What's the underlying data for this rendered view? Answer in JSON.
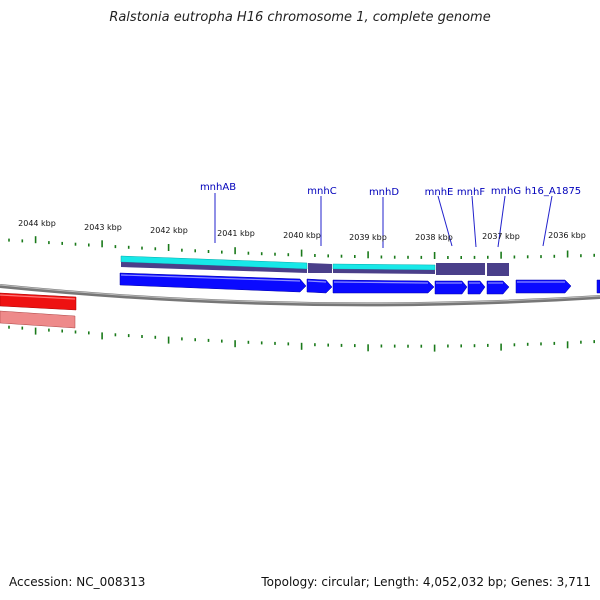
{
  "title": "Ralstonia eutropha H16 chromosome 1, complete genome",
  "footer": {
    "accession": "Accession: NC_008313",
    "summary": "Topology: circular; Length: 4,052,032 bp; Genes: 3,711"
  },
  "scale_labels": [
    "2044 kbp",
    "2043 kbp",
    "2042 kbp",
    "2041 kbp",
    "2040 kbp",
    "2039 kbp",
    "2038 kbp",
    "2037 kbp",
    "2036 kbp"
  ],
  "gene_labels": [
    "mnhAB",
    "mnhC",
    "mnhD",
    "mnhE",
    "mnhF",
    "mnhG",
    "h16_A1875"
  ],
  "colors": {
    "backbone": "#888888",
    "gene": "#0a0aff",
    "cds_light": "#18e8e8",
    "cds_dark": "#4a3f8a",
    "reverse_gene": "#ee1111",
    "reverse_gene_light": "#ee8a8a",
    "tick": "#1a7a1a",
    "label": "#0000bb"
  }
}
